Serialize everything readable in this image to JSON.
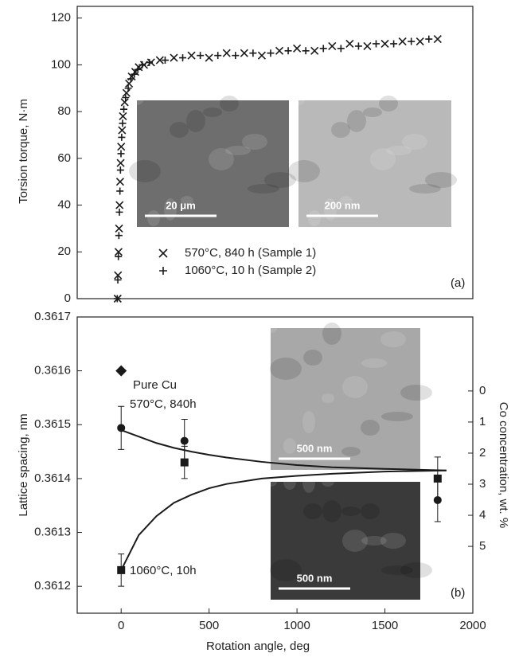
{
  "chart_data": [
    {
      "type": "scatter",
      "ylabel": "Torsion torque, N·m",
      "xlim": [
        -250,
        2000
      ],
      "ylim": [
        0,
        125
      ],
      "yticks": [
        0,
        20,
        40,
        60,
        80,
        100,
        120
      ],
      "series": [
        {
          "name": "570°C, 840 h (Sample 1)",
          "marker": "x",
          "color": "#1a1a1a",
          "x": [
            -20,
            -18,
            -15,
            -12,
            -9,
            -6,
            -3,
            0,
            5,
            10,
            20,
            30,
            45,
            60,
            80,
            100,
            130,
            170,
            220,
            300,
            400,
            500,
            600,
            700,
            800,
            900,
            1000,
            1100,
            1200,
            1300,
            1400,
            1500,
            1600,
            1700,
            1800
          ],
          "values": [
            0,
            10,
            20,
            30,
            40,
            50,
            58,
            65,
            72,
            78,
            84,
            88,
            92,
            95,
            97,
            99,
            100,
            101,
            102,
            103,
            104,
            103,
            105,
            105,
            104,
            106,
            107,
            106,
            108,
            109,
            108,
            109,
            110,
            110,
            111
          ]
        },
        {
          "name": "1060°C, 10 h (Sample 2)",
          "marker": "plus",
          "color": "#1a1a1a",
          "x": [
            -22,
            -19,
            -16,
            -13,
            -10,
            -7,
            -4,
            -1,
            3,
            8,
            15,
            25,
            40,
            55,
            75,
            95,
            120,
            160,
            250,
            350,
            450,
            550,
            650,
            750,
            850,
            950,
            1050,
            1150,
            1250,
            1350,
            1450,
            1550,
            1650,
            1750
          ],
          "values": [
            0,
            8,
            18,
            27,
            37,
            46,
            55,
            62,
            69,
            75,
            81,
            86,
            90,
            94,
            96,
            98,
            100,
            101,
            102,
            103,
            104,
            104,
            104,
            105,
            105,
            106,
            106,
            107,
            107,
            108,
            109,
            109,
            110,
            111
          ]
        }
      ],
      "legend": "lower-center",
      "annotations": [
        {
          "text": "(a)"
        }
      ],
      "insets": [
        {
          "scale_bar": "20 μm",
          "tone": "#6e6e6e"
        },
        {
          "scale_bar": "200 nm",
          "tone": "#b9b9b9"
        }
      ]
    },
    {
      "type": "scatter",
      "xlabel": "Rotation angle, deg",
      "ylabel": "Lattice spacing, nm",
      "y2label": "Co concentration, wt. %",
      "xlim": [
        -250,
        2000
      ],
      "xticks": [
        0,
        500,
        1000,
        1500,
        2000
      ],
      "ylim": [
        0.36115,
        0.3617
      ],
      "yticks": [
        0.3612,
        0.3613,
        0.3614,
        0.3615,
        0.3616,
        0.3617
      ],
      "y2lim": [
        7.15,
        -2.38
      ],
      "y2ticks": [
        0,
        1,
        2,
        3,
        4,
        5
      ],
      "series": [
        {
          "marker": "circle",
          "color": "#1a1a1a",
          "x": [
            0,
            360,
            1800
          ],
          "values": [
            0.361494,
            0.36147,
            0.36136
          ],
          "errors": [
            4e-05,
            4e-05,
            4e-05
          ]
        },
        {
          "marker": "square",
          "color": "#1a1a1a",
          "x": [
            0,
            360,
            1800
          ],
          "values": [
            0.36123,
            0.36143,
            0.3614
          ],
          "errors": [
            3e-05,
            3e-05,
            4e-05
          ]
        },
        {
          "marker": "diamond",
          "color": "#1a1a1a",
          "x": [
            0
          ],
          "values": [
            0.3616
          ]
        },
        {
          "marker": "line",
          "color": "#1a1a1a",
          "x": [
            0,
            100,
            200,
            300,
            400,
            500,
            600,
            800,
            1000,
            1200,
            1500,
            1850
          ],
          "values": [
            0.36149,
            0.361478,
            0.361466,
            0.361457,
            0.36145,
            0.361444,
            0.361439,
            0.361431,
            0.361425,
            0.361421,
            0.361418,
            0.361415
          ]
        },
        {
          "marker": "line",
          "color": "#1a1a1a",
          "x": [
            0,
            100,
            200,
            300,
            400,
            500,
            600,
            800,
            1000,
            1200,
            1500,
            1850
          ],
          "values": [
            0.36123,
            0.361295,
            0.36133,
            0.361355,
            0.36137,
            0.361382,
            0.36139,
            0.3614,
            0.361405,
            0.361409,
            0.361413,
            0.361415
          ]
        }
      ],
      "annotations": [
        {
          "text": "Pure Cu"
        },
        {
          "text": "570°C, 840h"
        },
        {
          "text": "1060°C, 10h"
        },
        {
          "text": "(b)"
        }
      ],
      "insets": [
        {
          "scale_bar": "500 nm",
          "tone": "#a8a8a8"
        },
        {
          "scale_bar": "500 nm",
          "tone": "#3a3a3a"
        }
      ]
    }
  ]
}
